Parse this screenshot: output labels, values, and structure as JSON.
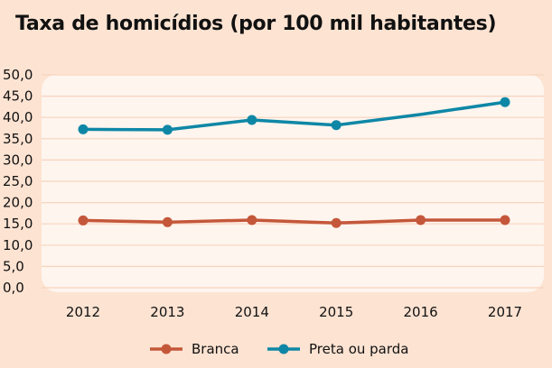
{
  "chart_data": {
    "type": "line",
    "title": "Taxa de homicídios (por 100 mil habitantes)",
    "xlabel": "",
    "ylabel": "",
    "categories": [
      "2012",
      "2013",
      "2014",
      "2015",
      "2016",
      "2017"
    ],
    "ylim": [
      0,
      50
    ],
    "yticks": [
      "0,0",
      "5,0",
      "10,0",
      "15,0",
      "20,0",
      "25,0",
      "30,0",
      "35,0",
      "40,0",
      "45,0",
      "50,0"
    ],
    "grid": true,
    "legend_position": "bottom",
    "series": [
      {
        "name": "Branca",
        "color": "#c4573a",
        "values": [
          15.8,
          15.4,
          15.9,
          15.2,
          15.9,
          15.9
        ],
        "markers": [
          true,
          true,
          true,
          true,
          true,
          true
        ]
      },
      {
        "name": "Preta ou parda",
        "color": "#0e87a6",
        "values": [
          37.2,
          37.1,
          39.4,
          38.2,
          40.7,
          43.6
        ],
        "markers": [
          true,
          true,
          true,
          true,
          false,
          true
        ]
      }
    ]
  },
  "colors": {
    "background": "#fde3d2",
    "plot_background": "#fef5ee",
    "grid": "#f7d3bd"
  }
}
